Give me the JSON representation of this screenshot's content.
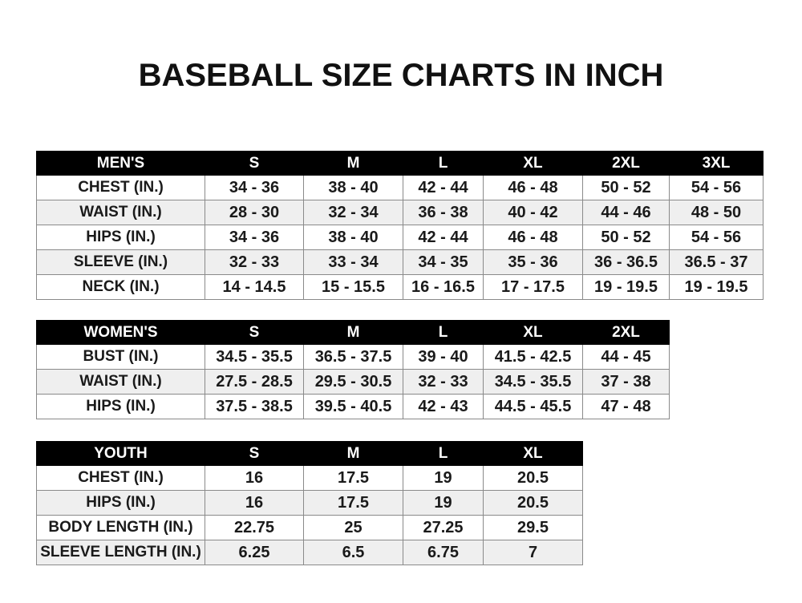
{
  "title": "BASEBALL SIZE CHARTS IN INCH",
  "tables": {
    "men": {
      "headers": [
        "MEN'S",
        "S",
        "M",
        "L",
        "XL",
        "2XL",
        "3XL"
      ],
      "rows": [
        [
          "CHEST (IN.)",
          "34 - 36",
          "38 - 40",
          "42 - 44",
          "46 - 48",
          "50 - 52",
          "54 - 56"
        ],
        [
          "WAIST (IN.)",
          "28 - 30",
          "32 - 34",
          "36 - 38",
          "40 - 42",
          "44 - 46",
          "48 - 50"
        ],
        [
          "HIPS (IN.)",
          "34 - 36",
          "38 - 40",
          "42 - 44",
          "46 - 48",
          "50 - 52",
          "54 - 56"
        ],
        [
          "SLEEVE (IN.)",
          "32 - 33",
          "33 - 34",
          "34 - 35",
          "35 - 36",
          "36 - 36.5",
          "36.5 - 37"
        ],
        [
          "NECK (IN.)",
          "14 - 14.5",
          "15 - 15.5",
          "16 - 16.5",
          "17 - 17.5",
          "19 - 19.5",
          "19 - 19.5"
        ]
      ]
    },
    "women": {
      "headers": [
        "WOMEN'S",
        "S",
        "M",
        "L",
        "XL",
        "2XL"
      ],
      "rows": [
        [
          "BUST (IN.)",
          "34.5 - 35.5",
          "36.5 - 37.5",
          "39 - 40",
          "41.5 - 42.5",
          "44 - 45"
        ],
        [
          "WAIST (IN.)",
          "27.5 - 28.5",
          "29.5 - 30.5",
          "32 - 33",
          "34.5 - 35.5",
          "37 - 38"
        ],
        [
          "HIPS (IN.)",
          "37.5 - 38.5",
          "39.5 - 40.5",
          "42 - 43",
          "44.5 - 45.5",
          "47 - 48"
        ]
      ]
    },
    "youth": {
      "headers": [
        "YOUTH",
        "S",
        "M",
        "L",
        "XL"
      ],
      "rows": [
        [
          "CHEST (IN.)",
          "16",
          "17.5",
          "19",
          "20.5"
        ],
        [
          "HIPS (IN.)",
          "16",
          "17.5",
          "19",
          "20.5"
        ],
        [
          "BODY LENGTH (IN.)",
          "22.75",
          "25",
          "27.25",
          "29.5"
        ],
        [
          "SLEEVE LENGTH (IN.)",
          "6.25",
          "6.5",
          "6.75",
          "7"
        ]
      ]
    }
  }
}
